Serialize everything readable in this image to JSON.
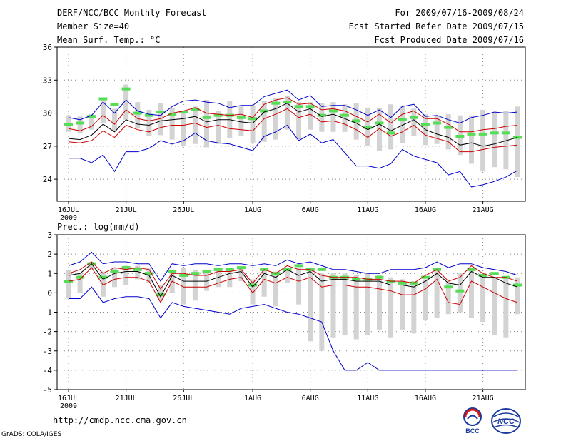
{
  "header": {
    "title": "DERF/NCC/BCC Monthly Forecast",
    "member_size": "Member Size=40",
    "variable": "Mean Surf. Temp.: °C",
    "period": "For 2009/07/16-2009/08/24",
    "refer_date": "Fcst Started Refer Date 2009/07/15",
    "produced_date": "Fcst Produced Date 2009/07/16"
  },
  "footer": {
    "url": "http://cmdp.ncc.cma.gov.cn",
    "credit": "GrADS: COLA/IGES",
    "logo_left": "BCC",
    "logo_right": "NCC"
  },
  "colors": {
    "outer": "#0000cc",
    "inner": "#cc0000",
    "mean": "#000000",
    "bar": "#d3d3d3",
    "median": "#55dd55",
    "grid": "#888888"
  },
  "chart_data": [
    {
      "type": "line",
      "title": "Mean Surf. Temp.: °C",
      "x_ticks": [
        "16JUL",
        "21JUL",
        "26JUL",
        "1AUG",
        "6AUG",
        "11AUG",
        "16AUG",
        "21AUG"
      ],
      "x_tick_days": [
        0,
        5,
        10,
        16,
        21,
        26,
        31,
        36
      ],
      "x_year_label": "2009",
      "ylim": [
        22,
        36
      ],
      "yticks": [
        24,
        27,
        30,
        33,
        36
      ],
      "days": 40,
      "series": [
        {
          "name": "max",
          "role": "outer",
          "values": [
            29.6,
            29.4,
            29.8,
            31.0,
            30.0,
            31.2,
            30.2,
            29.9,
            29.8,
            30.6,
            31.1,
            31.2,
            31.0,
            30.9,
            30.5,
            30.7,
            30.7,
            31.5,
            31.8,
            32.1,
            31.2,
            31.6,
            30.6,
            30.7,
            30.7,
            30.3,
            29.8,
            30.3,
            29.6,
            30.6,
            30.8,
            29.7,
            29.8,
            29.4,
            29.1,
            29.6,
            29.8,
            30.1,
            30.0,
            30.1
          ]
        },
        {
          "name": "upper",
          "role": "inner",
          "values": [
            28.6,
            28.4,
            28.8,
            29.8,
            29.0,
            30.3,
            29.5,
            29.3,
            29.5,
            30.0,
            30.2,
            30.5,
            30.0,
            29.9,
            29.8,
            29.9,
            29.6,
            30.8,
            31.2,
            31.4,
            30.8,
            30.9,
            30.3,
            30.4,
            30.2,
            29.7,
            29.2,
            29.9,
            29.1,
            29.9,
            30.2,
            29.5,
            29.5,
            29.0,
            28.3,
            28.3,
            28.5,
            28.6,
            28.8,
            28.9
          ]
        },
        {
          "name": "mean",
          "role": "mean",
          "values": [
            27.7,
            27.6,
            28.0,
            29.0,
            28.3,
            29.4,
            29.0,
            28.9,
            29.3,
            29.4,
            29.5,
            29.7,
            29.2,
            29.4,
            29.4,
            29.2,
            29.1,
            30.1,
            30.4,
            30.9,
            30.1,
            30.4,
            29.7,
            29.9,
            29.5,
            29.1,
            28.5,
            29.0,
            28.4,
            28.9,
            29.4,
            28.5,
            28.1,
            27.8,
            27.1,
            27.3,
            27.0,
            27.2,
            27.5,
            27.8
          ]
        },
        {
          "name": "lower",
          "role": "inner",
          "values": [
            27.4,
            27.3,
            27.5,
            28.4,
            27.8,
            28.9,
            28.5,
            28.3,
            28.7,
            28.9,
            28.9,
            29.1,
            28.7,
            28.9,
            28.6,
            28.5,
            28.4,
            29.5,
            29.9,
            30.4,
            29.6,
            29.9,
            29.2,
            29.3,
            29.0,
            28.5,
            27.8,
            28.6,
            27.9,
            28.3,
            28.9,
            28.0,
            27.7,
            27.4,
            26.5,
            26.5,
            26.7,
            26.9,
            27.0,
            27.1
          ]
        },
        {
          "name": "min",
          "role": "outer",
          "values": [
            25.9,
            25.9,
            25.5,
            26.2,
            24.7,
            26.5,
            26.5,
            26.8,
            27.5,
            27.2,
            27.5,
            28.2,
            27.5,
            27.3,
            27.2,
            26.9,
            26.6,
            27.9,
            28.3,
            28.9,
            27.5,
            28.1,
            27.3,
            27.6,
            26.4,
            25.2,
            25.2,
            25.0,
            25.4,
            26.7,
            26.1,
            25.8,
            25.5,
            24.4,
            24.7,
            23.3,
            23.5,
            23.8,
            24.2,
            24.8
          ]
        }
      ],
      "bars": {
        "low": [
          28.3,
          28.2,
          28.5,
          29.1,
          28.4,
          29.4,
          28.6,
          27.9,
          28.0,
          27.6,
          27.0,
          27.2,
          26.9,
          27.2,
          27.7,
          27.9,
          27.3,
          27.4,
          27.6,
          28.5,
          27.6,
          28.5,
          28.3,
          28.3,
          28.3,
          27.6,
          27.0,
          26.6,
          26.7,
          27.3,
          27.9,
          27.1,
          27.2,
          26.7,
          26.2,
          25.4,
          24.7,
          25.1,
          24.9,
          24.2
        ],
        "high": [
          29.8,
          29.7,
          29.9,
          31.3,
          30.4,
          32.6,
          31.0,
          30.3,
          30.9,
          30.5,
          30.2,
          30.6,
          31.2,
          30.2,
          31.1,
          30.6,
          30.7,
          31.1,
          31.4,
          31.6,
          31.0,
          31.0,
          30.9,
          31.0,
          30.8,
          30.9,
          30.5,
          30.5,
          30.8,
          30.7,
          30.4,
          29.9,
          29.8,
          29.9,
          29.8,
          29.8,
          30.3,
          30.1,
          30.2,
          30.6
        ],
        "median": [
          29.0,
          29.1,
          29.7,
          31.3,
          30.8,
          32.2,
          30.0,
          29.8,
          30.1,
          29.9,
          30.1,
          30.3,
          29.6,
          29.8,
          29.8,
          29.6,
          29.5,
          30.2,
          30.9,
          31.0,
          30.6,
          30.6,
          29.8,
          30.2,
          29.8,
          29.3,
          28.7,
          29.1,
          28.2,
          29.4,
          29.6,
          29.0,
          29.1,
          28.7,
          27.9,
          28.1,
          28.1,
          28.2,
          28.2,
          27.8
        ]
      }
    },
    {
      "type": "line",
      "title": "Prec.: log(mm/d)",
      "x_ticks": [
        "16JUL",
        "21JUL",
        "26JUL",
        "1AUG",
        "6AUG",
        "11AUG",
        "16AUG",
        "21AUG"
      ],
      "x_tick_days": [
        0,
        5,
        10,
        16,
        21,
        26,
        31,
        36
      ],
      "x_year_label": "2009",
      "ylim": [
        -5,
        3
      ],
      "yticks": [
        -5,
        -4,
        -3,
        -2,
        -1,
        0,
        1,
        2,
        3
      ],
      "days": 40,
      "series": [
        {
          "name": "max",
          "role": "outer",
          "values": [
            1.4,
            1.6,
            2.1,
            1.5,
            1.6,
            1.6,
            1.5,
            1.5,
            0.6,
            1.5,
            1.4,
            1.5,
            1.5,
            1.4,
            1.5,
            1.5,
            1.4,
            1.5,
            1.4,
            1.7,
            1.5,
            1.6,
            1.4,
            1.2,
            1.2,
            1.1,
            1.0,
            1.0,
            1.2,
            1.2,
            1.2,
            1.3,
            1.6,
            1.3,
            1.5,
            1.5,
            1.3,
            1.2,
            1.1,
            0.9
          ]
        },
        {
          "name": "upper",
          "role": "inner",
          "values": [
            1.0,
            1.2,
            1.6,
            1.0,
            1.3,
            1.2,
            1.3,
            1.2,
            0.2,
            1.0,
            1.0,
            0.9,
            0.9,
            1.1,
            1.1,
            1.2,
            0.5,
            1.2,
            1.0,
            1.4,
            1.2,
            1.2,
            0.9,
            0.8,
            0.8,
            0.8,
            0.7,
            0.7,
            0.6,
            0.6,
            0.5,
            0.9,
            1.2,
            0.6,
            0.8,
            1.4,
            1.0,
            0.8,
            0.8,
            0.6
          ]
        },
        {
          "name": "mean",
          "role": "mean",
          "values": [
            0.9,
            1.0,
            1.5,
            0.7,
            1.0,
            1.1,
            1.1,
            0.9,
            -0.2,
            0.9,
            0.6,
            0.6,
            0.6,
            0.8,
            1.0,
            1.1,
            0.3,
            1.0,
            0.8,
            1.2,
            0.9,
            1.1,
            0.6,
            0.7,
            0.7,
            0.6,
            0.6,
            0.6,
            0.4,
            0.4,
            0.3,
            0.6,
            1.0,
            0.5,
            0.4,
            1.1,
            0.8,
            0.8,
            0.5,
            0.3
          ]
        },
        {
          "name": "lower",
          "role": "inner",
          "values": [
            0.6,
            0.7,
            1.3,
            0.4,
            0.7,
            0.8,
            0.8,
            0.6,
            -0.5,
            0.6,
            0.3,
            0.3,
            0.3,
            0.5,
            0.7,
            0.8,
            0.0,
            0.7,
            0.5,
            0.8,
            0.6,
            0.8,
            0.3,
            0.4,
            0.4,
            0.3,
            0.3,
            0.2,
            0.1,
            -0.1,
            -0.1,
            0.2,
            0.7,
            -0.5,
            -0.6,
            0.6,
            0.3,
            0.0,
            -0.3,
            -0.5
          ]
        },
        {
          "name": "min",
          "role": "outer",
          "values": [
            -0.3,
            -0.3,
            0.3,
            -0.5,
            -0.3,
            -0.2,
            -0.2,
            -0.3,
            -1.3,
            -0.5,
            -0.7,
            -0.8,
            -0.9,
            -1.0,
            -1.1,
            -0.8,
            -0.7,
            -0.6,
            -0.8,
            -1.0,
            -1.1,
            -1.3,
            -1.5,
            -3.0,
            -4.0,
            -4.0,
            -3.6,
            -4.0,
            -4.0,
            -4.0,
            -4.0,
            -4.0,
            -4.0,
            -4.0,
            -4.0,
            -4.0,
            -4.0,
            -4.0,
            -4.0,
            -4.0
          ]
        }
      ],
      "bars": {
        "low": [
          -0.3,
          0.0,
          1.2,
          -0.2,
          0.3,
          0.4,
          0.7,
          0.5,
          -0.4,
          0.0,
          -0.6,
          -0.4,
          0.1,
          0.3,
          0.3,
          0.6,
          -0.6,
          -0.2,
          -0.7,
          0.5,
          -0.6,
          -2.5,
          -3.0,
          -2.3,
          -2.2,
          -2.4,
          -2.2,
          -1.9,
          -2.3,
          -1.9,
          -2.1,
          -1.4,
          -1.3,
          -1.1,
          -1.0,
          -1.3,
          -1.5,
          -2.2,
          -2.3,
          -1.1
        ],
        "high": [
          1.2,
          1.0,
          1.6,
          1.1,
          1.3,
          1.4,
          1.4,
          1.3,
          0.4,
          1.2,
          1.3,
          1.2,
          1.1,
          1.2,
          1.3,
          1.3,
          0.7,
          1.2,
          1.1,
          1.3,
          1.3,
          1.3,
          1.0,
          1.0,
          1.0,
          0.9,
          1.0,
          0.9,
          0.8,
          0.7,
          0.6,
          0.7,
          1.2,
          0.6,
          1.0,
          1.3,
          0.9,
          0.8,
          0.8,
          0.8
        ],
        "median": [
          0.6,
          0.8,
          1.5,
          0.8,
          1.1,
          1.3,
          1.2,
          1.0,
          -0.1,
          1.1,
          0.9,
          1.0,
          1.1,
          1.2,
          1.2,
          1.3,
          0.4,
          1.2,
          1.0,
          1.2,
          1.4,
          1.2,
          1.2,
          0.8,
          0.8,
          0.7,
          0.7,
          0.8,
          0.6,
          0.5,
          0.5,
          0.8,
          1.2,
          0.3,
          0.1,
          1.2,
          0.9,
          1.0,
          0.8,
          0.4
        ]
      }
    }
  ]
}
